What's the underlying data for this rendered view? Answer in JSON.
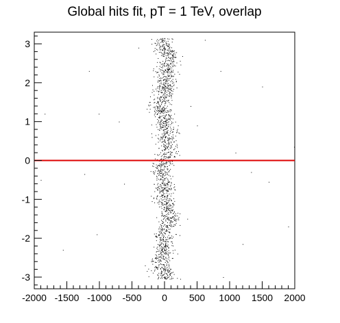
{
  "chart_data": {
    "type": "scatter",
    "title": "Global hits fit, pT = 1 TeV, overlap",
    "xlabel": "",
    "ylabel": "",
    "xlim": [
      -2000,
      2000
    ],
    "ylim": [
      -3.3,
      3.3
    ],
    "x_ticks": [
      -2000,
      -1500,
      -1000,
      -500,
      0,
      500,
      1000,
      1500,
      2000
    ],
    "y_ticks": [
      -3,
      -2,
      -1,
      0,
      1,
      2,
      3
    ],
    "grid": false,
    "legend": "none",
    "reference_line": {
      "y": 0,
      "color": "#dd0000"
    },
    "point_color": "#000000",
    "series_points": [
      {
        "x": -1160,
        "y": 2.3
      },
      {
        "x": -1840,
        "y": 1.2
      },
      {
        "x": -1010,
        "y": 1.2
      },
      {
        "x": -1900,
        "y": -0.5
      },
      {
        "x": -1230,
        "y": -0.35
      },
      {
        "x": -620,
        "y": -0.6
      },
      {
        "x": -1040,
        "y": -1.9
      },
      {
        "x": -1560,
        "y": -2.3
      },
      {
        "x": 620,
        "y": 3.1
      },
      {
        "x": 860,
        "y": 2.3
      },
      {
        "x": 1500,
        "y": 1.9
      },
      {
        "x": 1090,
        "y": 0.2
      },
      {
        "x": 1990,
        "y": 0.35
      },
      {
        "x": 1330,
        "y": -0.3
      },
      {
        "x": 1600,
        "y": -0.55
      },
      {
        "x": 1200,
        "y": -2.15
      },
      {
        "x": 1900,
        "y": -1.7
      },
      {
        "x": 900,
        "y": -3.0
      },
      {
        "x": 350,
        "y": -1.5
      },
      {
        "x": -400,
        "y": 2.9
      },
      {
        "x": 400,
        "y": 1.4
      },
      {
        "x": -300,
        "y": -2.7
      },
      {
        "x": 500,
        "y": 0.9
      },
      {
        "x": -700,
        "y": 1.0
      }
    ],
    "band": {
      "x_center": 0,
      "x_halfwidth": 170,
      "point_count": 1800
    }
  }
}
